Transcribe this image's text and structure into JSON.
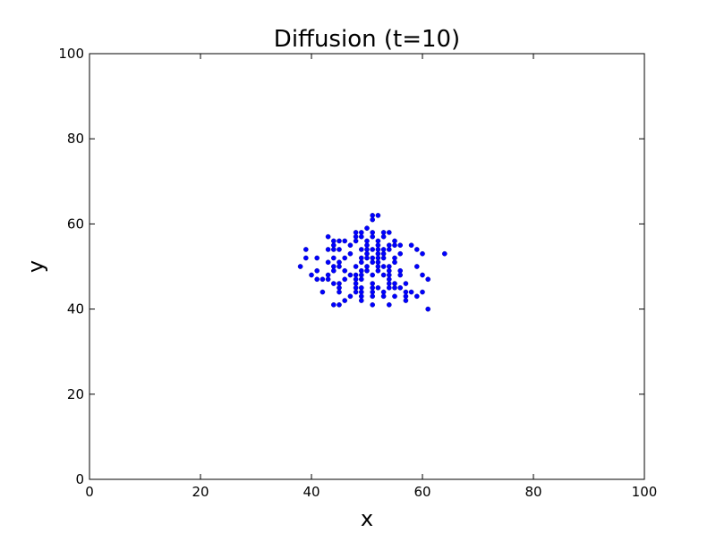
{
  "chart_data": {
    "type": "scatter",
    "title": "Diffusion (t=10)",
    "xlabel": "x",
    "ylabel": "y",
    "xlim": [
      0,
      100
    ],
    "ylim": [
      0,
      100
    ],
    "xticks": [
      0,
      20,
      40,
      60,
      80,
      100
    ],
    "yticks": [
      0,
      20,
      40,
      60,
      80,
      100
    ],
    "grid": false,
    "marker_color": "#0000ff",
    "points": [
      [
        51,
        62
      ],
      [
        52,
        62
      ],
      [
        51,
        61
      ],
      [
        50,
        59
      ],
      [
        48,
        58
      ],
      [
        49,
        58
      ],
      [
        51,
        58
      ],
      [
        53,
        58
      ],
      [
        54,
        58
      ],
      [
        43,
        57
      ],
      [
        48,
        57
      ],
      [
        49,
        57
      ],
      [
        51,
        57
      ],
      [
        53,
        57
      ],
      [
        44,
        56
      ],
      [
        45,
        56
      ],
      [
        46,
        56
      ],
      [
        48,
        56
      ],
      [
        50,
        56
      ],
      [
        52,
        56
      ],
      [
        55,
        56
      ],
      [
        44,
        55
      ],
      [
        47,
        55
      ],
      [
        50,
        55
      ],
      [
        52,
        55
      ],
      [
        54,
        55
      ],
      [
        55,
        55
      ],
      [
        56,
        55
      ],
      [
        58,
        55
      ],
      [
        39,
        54
      ],
      [
        43,
        54
      ],
      [
        44,
        54
      ],
      [
        45,
        54
      ],
      [
        49,
        54
      ],
      [
        50,
        54
      ],
      [
        51,
        54
      ],
      [
        52,
        54
      ],
      [
        53,
        54
      ],
      [
        54,
        54
      ],
      [
        59,
        54
      ],
      [
        47,
        53
      ],
      [
        50,
        53
      ],
      [
        52,
        53
      ],
      [
        53,
        53
      ],
      [
        56,
        53
      ],
      [
        60,
        53
      ],
      [
        64,
        53
      ],
      [
        39,
        52
      ],
      [
        41,
        52
      ],
      [
        44,
        52
      ],
      [
        46,
        52
      ],
      [
        49,
        52
      ],
      [
        50,
        52
      ],
      [
        51,
        52
      ],
      [
        52,
        52
      ],
      [
        53,
        52
      ],
      [
        55,
        52
      ],
      [
        43,
        51
      ],
      [
        45,
        51
      ],
      [
        49,
        51
      ],
      [
        51,
        51
      ],
      [
        52,
        51
      ],
      [
        55,
        51
      ],
      [
        38,
        50
      ],
      [
        44,
        50
      ],
      [
        45,
        50
      ],
      [
        48,
        50
      ],
      [
        50,
        50
      ],
      [
        52,
        50
      ],
      [
        53,
        50
      ],
      [
        54,
        50
      ],
      [
        59,
        50
      ],
      [
        41,
        49
      ],
      [
        44,
        49
      ],
      [
        46,
        49
      ],
      [
        49,
        49
      ],
      [
        50,
        49
      ],
      [
        52,
        49
      ],
      [
        54,
        49
      ],
      [
        56,
        49
      ],
      [
        40,
        48
      ],
      [
        43,
        48
      ],
      [
        47,
        48
      ],
      [
        48,
        48
      ],
      [
        49,
        48
      ],
      [
        51,
        48
      ],
      [
        53,
        48
      ],
      [
        54,
        48
      ],
      [
        56,
        48
      ],
      [
        60,
        48
      ],
      [
        41,
        47
      ],
      [
        42,
        47
      ],
      [
        43,
        47
      ],
      [
        46,
        47
      ],
      [
        48,
        47
      ],
      [
        49,
        47
      ],
      [
        54,
        47
      ],
      [
        61,
        47
      ],
      [
        44,
        46
      ],
      [
        45,
        46
      ],
      [
        48,
        46
      ],
      [
        51,
        46
      ],
      [
        54,
        46
      ],
      [
        55,
        46
      ],
      [
        57,
        46
      ],
      [
        45,
        45
      ],
      [
        48,
        45
      ],
      [
        49,
        45
      ],
      [
        51,
        45
      ],
      [
        52,
        45
      ],
      [
        54,
        45
      ],
      [
        55,
        45
      ],
      [
        56,
        45
      ],
      [
        42,
        44
      ],
      [
        45,
        44
      ],
      [
        48,
        44
      ],
      [
        49,
        44
      ],
      [
        51,
        44
      ],
      [
        53,
        44
      ],
      [
        57,
        44
      ],
      [
        58,
        44
      ],
      [
        60,
        44
      ],
      [
        47,
        43
      ],
      [
        49,
        43
      ],
      [
        51,
        43
      ],
      [
        53,
        43
      ],
      [
        55,
        43
      ],
      [
        57,
        43
      ],
      [
        59,
        43
      ],
      [
        46,
        42
      ],
      [
        49,
        42
      ],
      [
        57,
        42
      ],
      [
        44,
        41
      ],
      [
        45,
        41
      ],
      [
        51,
        41
      ],
      [
        54,
        41
      ],
      [
        61,
        40
      ]
    ]
  }
}
